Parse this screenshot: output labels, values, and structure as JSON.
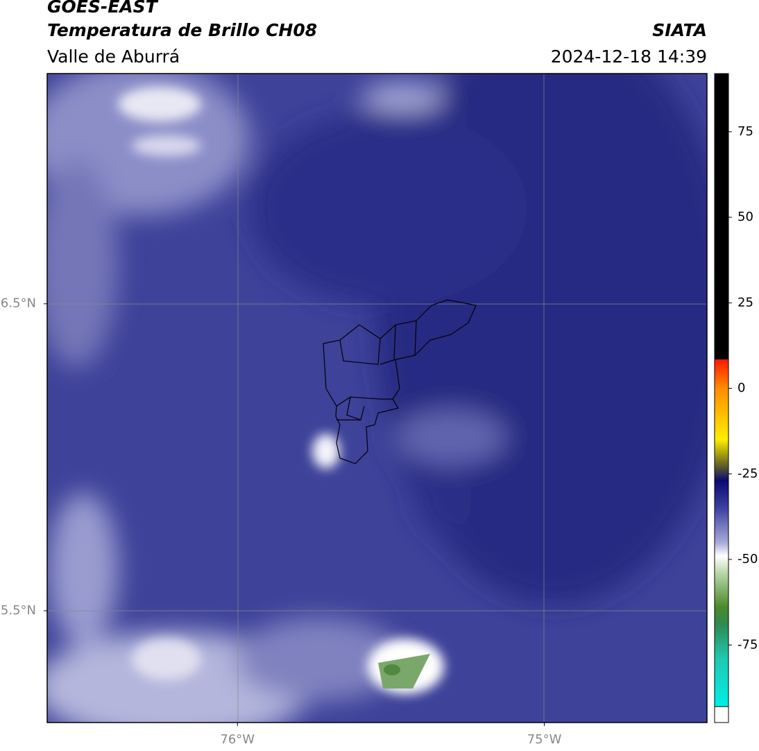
{
  "header": {
    "title": "GOES-EAST",
    "subtitle": "Temperatura de Brillo CH08",
    "region": "Valle de Aburrá",
    "source": "SIATA",
    "datetime": "2024-12-18 14:39"
  },
  "map": {
    "xlim": [
      -76.62,
      -74.47
    ],
    "ylim": [
      5.136,
      7.25
    ],
    "xticks": [
      {
        "value": -76,
        "label": "76°W"
      },
      {
        "value": -75,
        "label": "75°W"
      }
    ],
    "yticks": [
      {
        "value": 6.5,
        "label": "6.5°N"
      },
      {
        "value": 5.5,
        "label": "5.5°N"
      }
    ]
  },
  "colorbar": {
    "lim": [
      -93,
      92
    ],
    "ticks": [
      75,
      50,
      25,
      0,
      -25,
      -50,
      -75
    ]
  }
}
